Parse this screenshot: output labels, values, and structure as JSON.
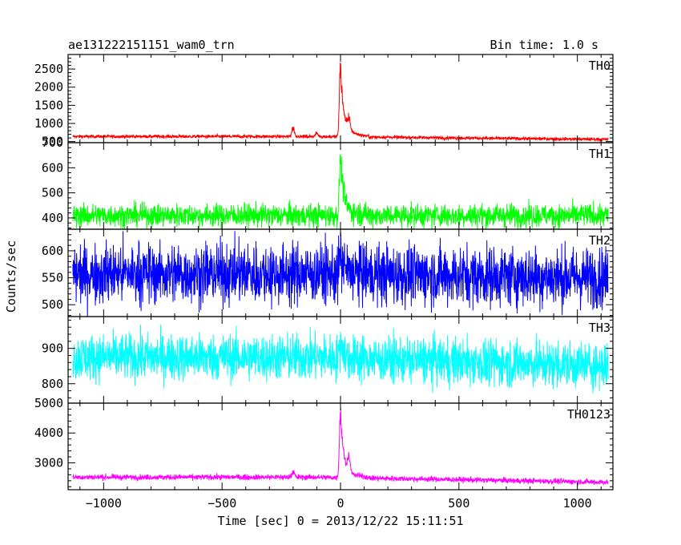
{
  "chart_data": {
    "type": "line",
    "title": "ae131222151151_wam0_trn",
    "bin_time": "Bin time: 1.0 s",
    "xlabel": "Time [sec] 0 = 2013/12/22 15:11:51",
    "ylabel": "Counts/sec",
    "xlim": [
      -1150,
      1150
    ],
    "x_ticks": [
      -1000,
      -500,
      0,
      500,
      1000
    ],
    "x_tick_labels": [
      "−1000",
      "−500",
      "0",
      "500",
      "1000"
    ],
    "x_range_data": [
      -1130,
      1130
    ],
    "panels": [
      {
        "name": "TH0",
        "color": "#ff0000",
        "ylim": [
          470,
          2900
        ],
        "y_ticks": [
          500,
          1000,
          1500,
          2000,
          2500
        ],
        "baseline": 640,
        "noise": 45,
        "late_baseline": 560,
        "peak": 2900,
        "peak_x": 0,
        "features": [
          {
            "x": -200,
            "amp": 300
          },
          {
            "x": -100,
            "amp": 120
          },
          {
            "x": 35,
            "amp": 400
          }
        ]
      },
      {
        "name": "TH1",
        "color": "#00ff00",
        "ylim": [
          355,
          700
        ],
        "y_ticks": [
          400,
          500,
          600,
          700
        ],
        "baseline": 410,
        "noise": 45,
        "late_baseline": 410,
        "peak": 680,
        "peak_x": 0,
        "features": []
      },
      {
        "name": "TH2",
        "color": "#0000ff",
        "ylim": [
          478,
          640
        ],
        "y_ticks": [
          500,
          550,
          600
        ],
        "baseline": 558,
        "noise": 55,
        "late_baseline": 550,
        "peak": 595,
        "peak_x": 0,
        "features": []
      },
      {
        "name": "TH3",
        "color": "#00ffff",
        "ylim": [
          745,
          990
        ],
        "y_ticks": [
          800,
          900
        ],
        "baseline": 875,
        "noise": 65,
        "late_baseline": 850,
        "peak": 930,
        "peak_x": 0,
        "features": []
      },
      {
        "name": "TH0123",
        "color": "#ff00ff",
        "ylim": [
          2100,
          5000
        ],
        "y_ticks": [
          3000,
          4000,
          5000
        ],
        "baseline": 2520,
        "noise": 90,
        "late_baseline": 2350,
        "peak": 5000,
        "peak_x": 0,
        "features": [
          {
            "x": -200,
            "amp": 250
          },
          {
            "x": 35,
            "amp": 600
          }
        ]
      }
    ]
  }
}
